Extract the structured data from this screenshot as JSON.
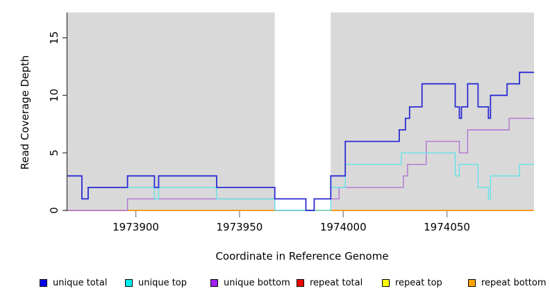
{
  "chart_data": {
    "type": "line",
    "style": "step-coverage-plot",
    "title": "",
    "xlabel": "Coordinate in Reference Genome",
    "ylabel": "Read Coverage Depth",
    "xlim": [
      1973867,
      1974092
    ],
    "ylim": [
      0,
      17.2
    ],
    "x_ticks": [
      1973900,
      1973950,
      1974000,
      1974050
    ],
    "y_ticks": [
      0,
      5,
      10,
      15
    ],
    "grid": false,
    "plot_background": "#d9d9d9",
    "highlight_band": {
      "x1": 1973967,
      "x2": 1973994,
      "color": "#ffffff",
      "note": "white vertical band over plot area"
    },
    "legend_position": "bottom",
    "x_end": 1974092,
    "series": [
      {
        "name": "unique total",
        "color": "#2a2ad6",
        "legend_color": "#0000ee",
        "width": 1.8,
        "steps": [
          [
            1973867,
            3
          ],
          [
            1973874,
            1
          ],
          [
            1973877,
            2
          ],
          [
            1973896,
            3
          ],
          [
            1973909,
            2
          ],
          [
            1973911,
            3
          ],
          [
            1973939,
            2
          ],
          [
            1973967,
            1
          ],
          [
            1973982,
            0
          ],
          [
            1973986,
            1
          ],
          [
            1973994,
            3
          ],
          [
            1974001,
            6
          ],
          [
            1974027,
            7
          ],
          [
            1974030,
            8
          ],
          [
            1974032,
            9
          ],
          [
            1974038,
            11
          ],
          [
            1974054,
            9
          ],
          [
            1974056,
            8
          ],
          [
            1974057,
            9
          ],
          [
            1974060,
            11
          ],
          [
            1974065,
            9
          ],
          [
            1974070,
            8
          ],
          [
            1974071,
            10
          ],
          [
            1974079,
            11
          ],
          [
            1974085,
            12
          ]
        ]
      },
      {
        "name": "unique top",
        "color": "#63e3e9",
        "legend_color": "#00eeee",
        "width": 1.4,
        "steps": [
          [
            1973867,
            3
          ],
          [
            1973874,
            1
          ],
          [
            1973877,
            2
          ],
          [
            1973909,
            1
          ],
          [
            1973911,
            2
          ],
          [
            1973939,
            1
          ],
          [
            1973967,
            0
          ],
          [
            1973994,
            2
          ],
          [
            1974001,
            4
          ],
          [
            1974028,
            5
          ],
          [
            1974054,
            3
          ],
          [
            1974056,
            4
          ],
          [
            1974065,
            2
          ],
          [
            1974070,
            1
          ],
          [
            1974071,
            3
          ],
          [
            1974085,
            4
          ]
        ]
      },
      {
        "name": "unique bottom",
        "color": "#b273d4",
        "legend_color": "#a020f0",
        "width": 1.4,
        "steps": [
          [
            1973867,
            0
          ],
          [
            1973896,
            1
          ],
          [
            1973967,
            0
          ],
          [
            1973986,
            1
          ],
          [
            1973998,
            2
          ],
          [
            1974029,
            3
          ],
          [
            1974031,
            4
          ],
          [
            1974040,
            6
          ],
          [
            1974056,
            5
          ],
          [
            1974060,
            7
          ],
          [
            1974080,
            8
          ]
        ]
      },
      {
        "name": "repeat total",
        "color": "#d4607c",
        "legend_color": "#ee0000",
        "width": 1.4,
        "steps": [
          [
            1973867,
            0
          ]
        ]
      },
      {
        "name": "repeat top",
        "color": "#ffff2a",
        "legend_color": "#ffff00",
        "width": 1.4,
        "steps": [
          [
            1973867,
            0
          ]
        ]
      },
      {
        "name": "repeat bottom",
        "color": "#ff9803",
        "legend_color": "#ffa500",
        "width": 1.6,
        "steps": [
          [
            1973896,
            0
          ]
        ]
      }
    ]
  }
}
